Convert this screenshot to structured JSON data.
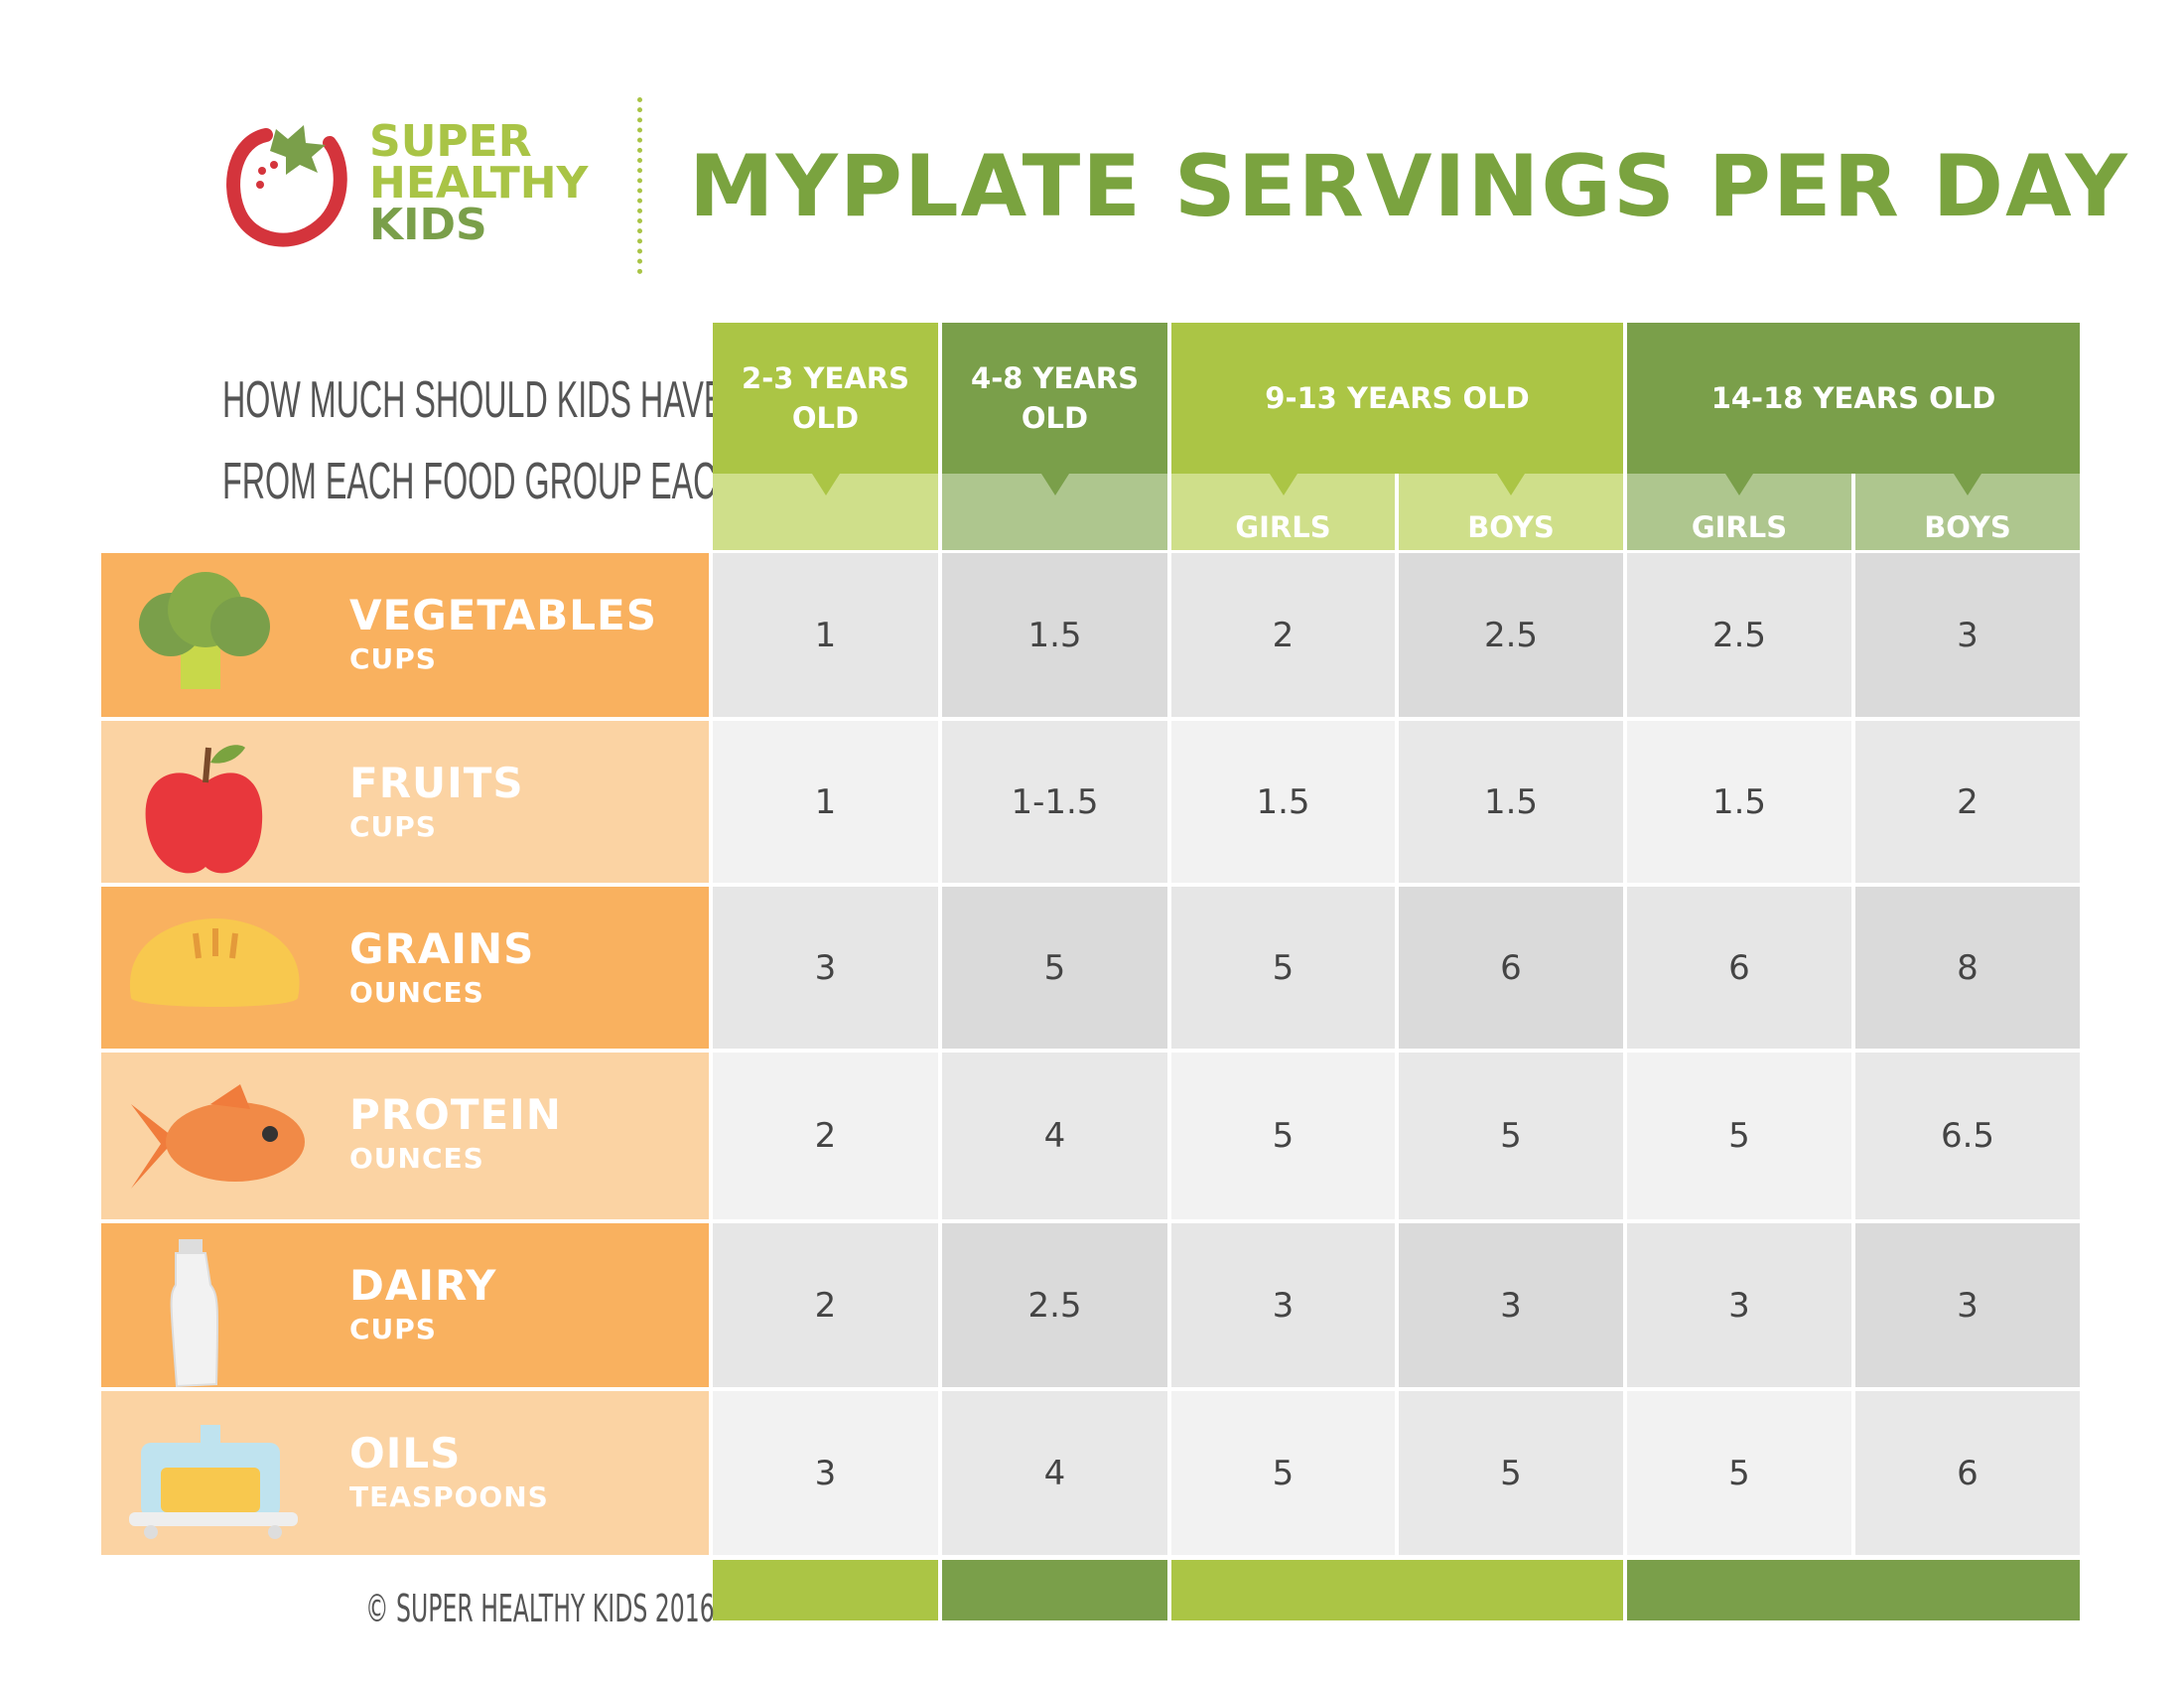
{
  "logo": {
    "line1": "SUPER",
    "line2": "HEALTHY",
    "line3": "KIDS"
  },
  "title": "MYPLATE SERVINGS PER DAY",
  "question": {
    "line1": "HOW MUCH SHOULD KIDS HAVE",
    "line2": "FROM EACH FOOD GROUP EACH DAY?"
  },
  "colors": {
    "light_green": "#abc545",
    "dark_green": "#7a9f4a",
    "light_sub": "#cfdf8a",
    "dark_sub": "#aec68e",
    "orange": "#f9b15f",
    "light_orange": "#fbd3a3",
    "title_green": "#7aa33f",
    "logo_red": "#d4343c"
  },
  "groups": [
    {
      "label": "2-3 YEARS OLD"
    },
    {
      "label": "4-8 YEARS OLD"
    },
    {
      "label": "9-13 YEARS OLD",
      "sub": [
        "GIRLS",
        "BOYS"
      ]
    },
    {
      "label": "14-18 YEARS OLD",
      "sub": [
        "GIRLS",
        "BOYS"
      ]
    }
  ],
  "rows": [
    {
      "name": "VEGETABLES",
      "unit": "CUPS",
      "icon": "broccoli-icon",
      "values": [
        "1",
        "1.5",
        "2",
        "2.5",
        "2.5",
        "3"
      ]
    },
    {
      "name": "FRUITS",
      "unit": "CUPS",
      "icon": "apple-icon",
      "values": [
        "1",
        "1-1.5",
        "1.5",
        "1.5",
        "1.5",
        "2"
      ]
    },
    {
      "name": "GRAINS",
      "unit": "OUNCES",
      "icon": "bread-icon",
      "values": [
        "3",
        "5",
        "5",
        "6",
        "6",
        "8"
      ]
    },
    {
      "name": "PROTEIN",
      "unit": "OUNCES",
      "icon": "fish-icon",
      "values": [
        "2",
        "4",
        "5",
        "5",
        "5",
        "6.5"
      ]
    },
    {
      "name": "DAIRY",
      "unit": "CUPS",
      "icon": "milk-bottle-icon",
      "values": [
        "2",
        "2.5",
        "3",
        "3",
        "3",
        "3"
      ]
    },
    {
      "name": "OILS",
      "unit": "TEASPOONS",
      "icon": "butter-dish-icon",
      "values": [
        "3",
        "4",
        "5",
        "5",
        "5",
        "6"
      ]
    }
  ],
  "copyright": "© SUPER HEALTHY KIDS 2016"
}
